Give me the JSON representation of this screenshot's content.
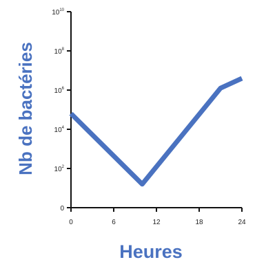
{
  "chart_data": {
    "type": "line",
    "xlabel": "Heures",
    "ylabel": "Nb de bactéries",
    "xlim": [
      0,
      24
    ],
    "ylim_log10": [
      0,
      10
    ],
    "y_scale": "log10",
    "grid": false,
    "x_ticks": [
      {
        "value": 0,
        "label": "0"
      },
      {
        "value": 6,
        "label": "6"
      },
      {
        "value": 12,
        "label": "12"
      },
      {
        "value": 18,
        "label": "18"
      },
      {
        "value": 24,
        "label": "24"
      }
    ],
    "y_ticks": [
      {
        "log": 0,
        "base": "0",
        "exp": ""
      },
      {
        "log": 2,
        "base": "10",
        "exp": "2"
      },
      {
        "log": 4,
        "base": "10",
        "exp": "4"
      },
      {
        "log": 6,
        "base": "10",
        "exp": "6"
      },
      {
        "log": 8,
        "base": "10",
        "exp": "8"
      },
      {
        "log": 10,
        "base": "10",
        "exp": "10"
      }
    ],
    "series": [
      {
        "color": "#4a72c0",
        "x": [
          0,
          10,
          21,
          24
        ],
        "y_log10": [
          4.8,
          1.2,
          6.1,
          6.6
        ]
      }
    ]
  },
  "colors": {
    "line": "#4a72c0",
    "axis": "#111111",
    "title": "#4a72c0"
  }
}
